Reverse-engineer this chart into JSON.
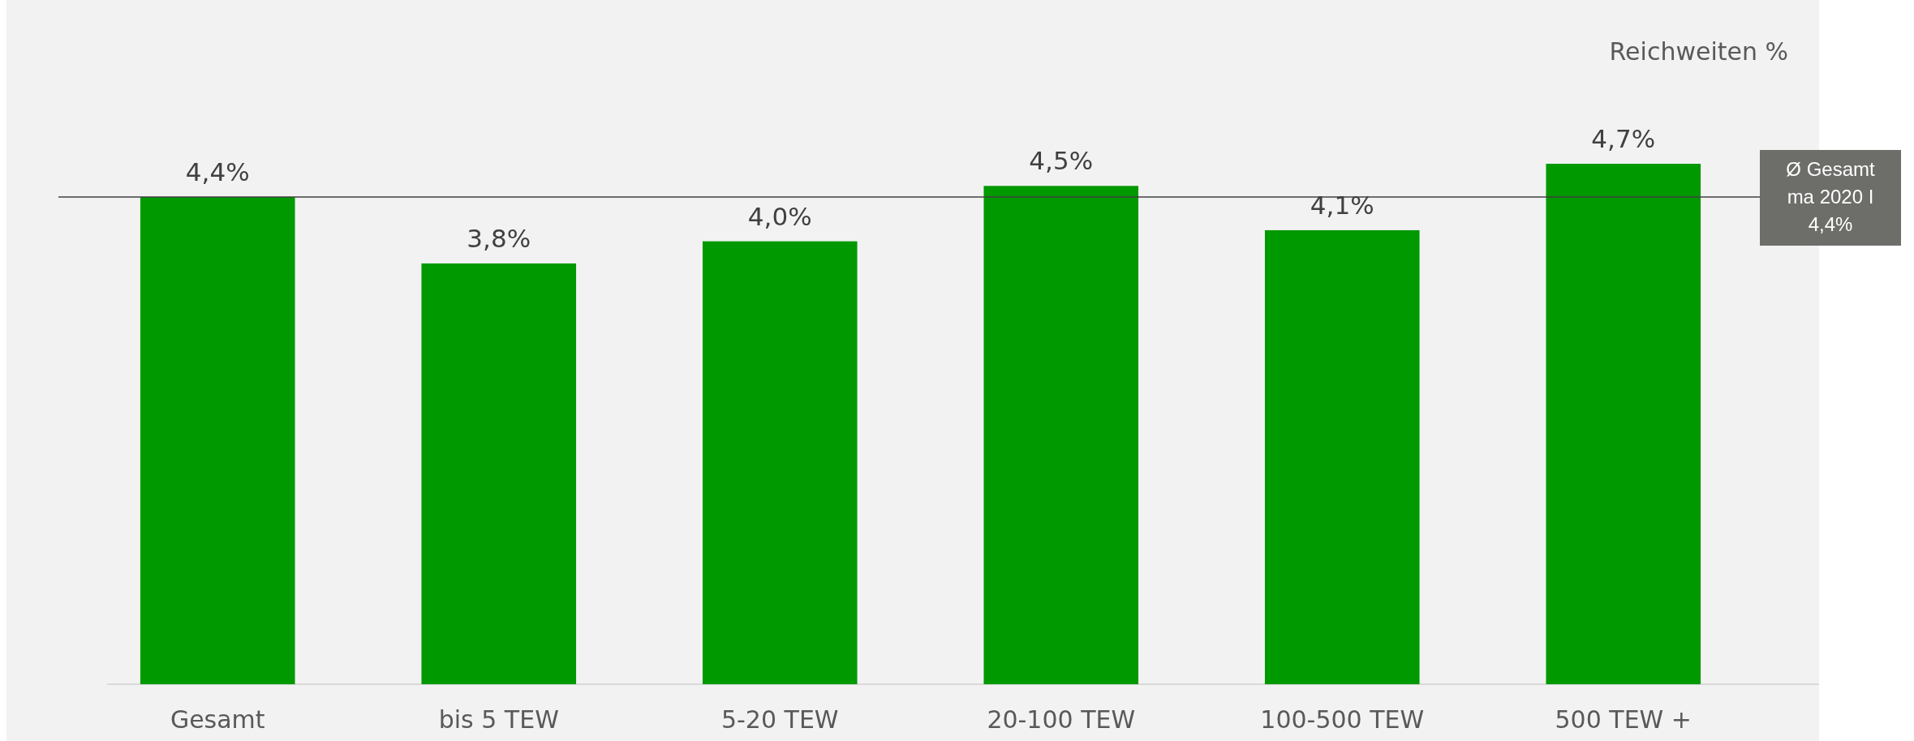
{
  "chart_data": {
    "type": "bar",
    "title": "Reichweiten %",
    "categories": [
      "Gesamt",
      "bis 5 TEW",
      "5-20 TEW",
      "20-100 TEW",
      "100-500 TEW",
      "500 TEW +"
    ],
    "values": [
      4.4,
      3.8,
      4.0,
      4.5,
      4.1,
      4.7
    ],
    "value_labels": [
      "4,4%",
      "3,8%",
      "4,0%",
      "4,5%",
      "4,1%",
      "4,7%"
    ],
    "color": "#009900",
    "ref_lines": [
      {
        "axis": "y",
        "value": 4.4,
        "label": "Ø Gesamt\nma 2020 I\n4,4%",
        "color": "#404040"
      }
    ]
  }
}
